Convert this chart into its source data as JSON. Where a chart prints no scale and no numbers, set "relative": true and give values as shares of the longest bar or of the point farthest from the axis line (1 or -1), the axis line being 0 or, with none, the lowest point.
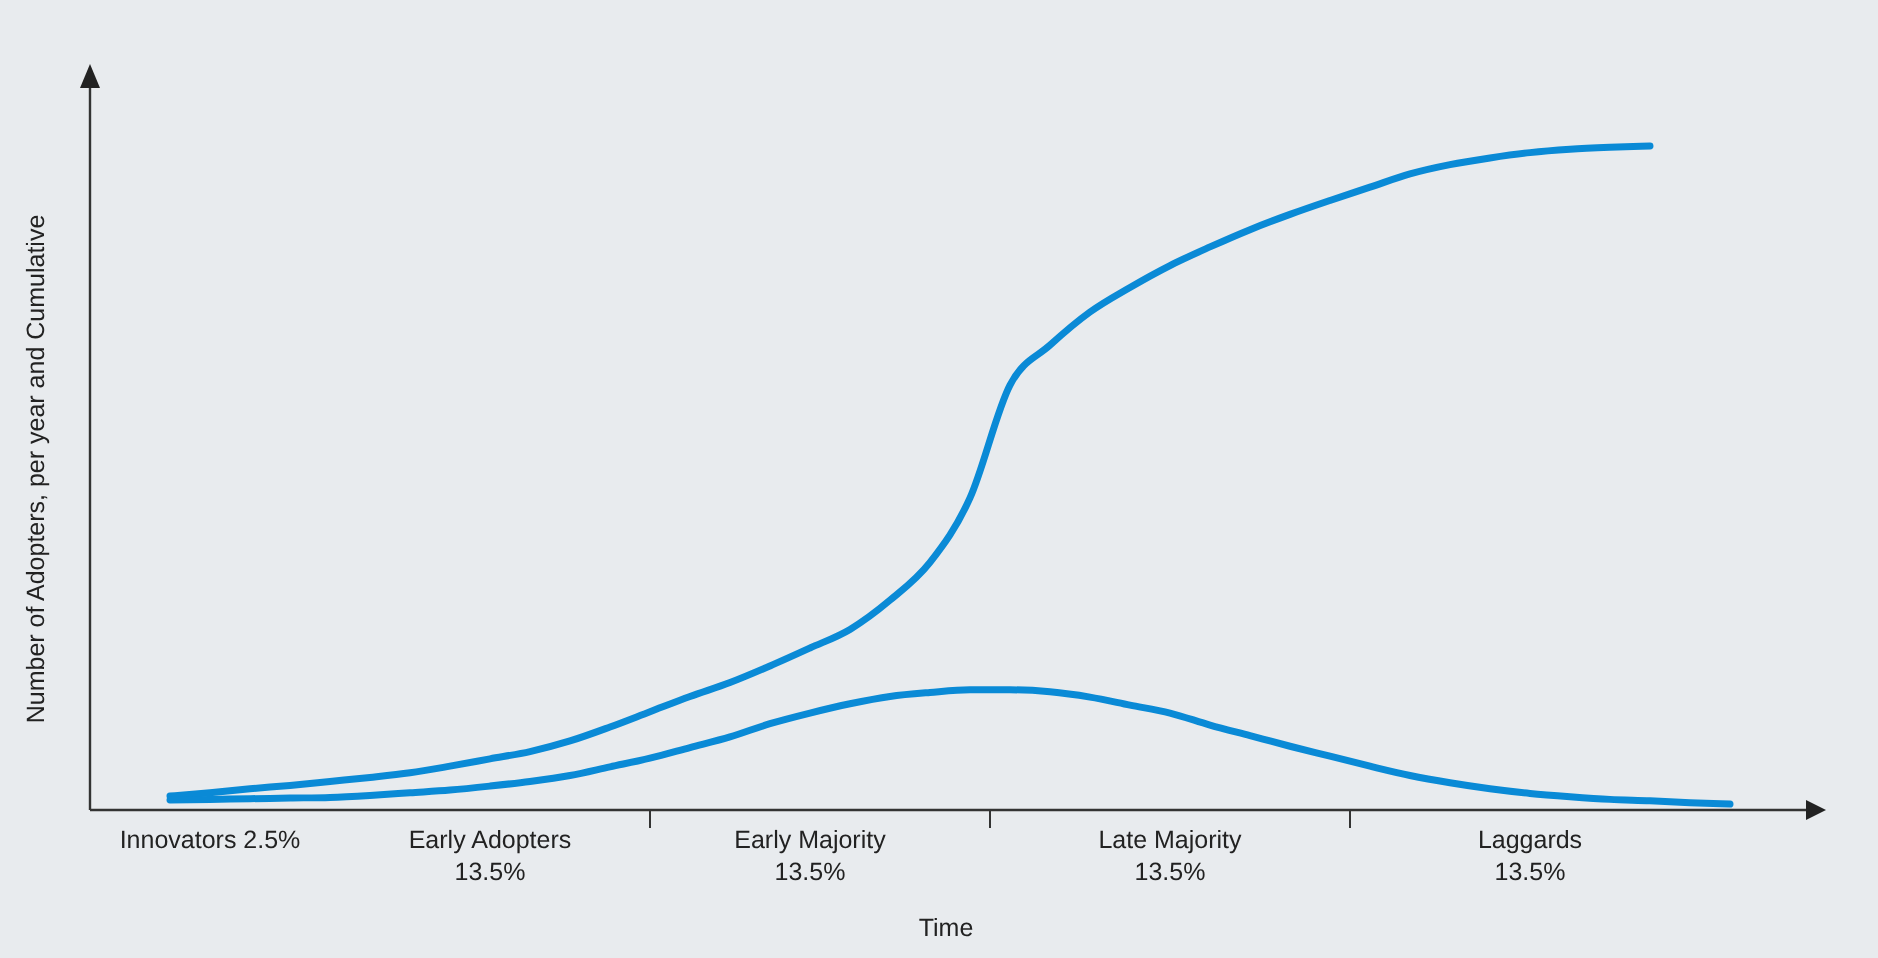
{
  "chart_data": {
    "type": "line",
    "relative": true,
    "xlabel": "Time",
    "ylabel": "Number of Adopters, per year and Cumulative",
    "categories": [
      null,
      null,
      null,
      "Innovators 2.5%",
      null,
      null,
      null,
      null,
      null,
      null,
      "Early Adopters\n13.5%",
      null,
      null,
      null,
      null,
      null,
      null,
      null,
      "Early Majority\n13.5%",
      null,
      null,
      null,
      null,
      null,
      null,
      null,
      null,
      "Late Majority\n13.5%",
      null,
      null,
      null,
      null,
      null,
      null,
      null,
      null,
      "Laggards\n13.5%",
      null,
      null,
      null,
      null,
      null,
      null,
      null
    ],
    "series": [
      {
        "color": "#0a8ad6",
        "values": [
          null,
          null,
          0.021,
          0.026,
          0.032,
          0.037,
          0.043,
          0.049,
          0.056,
          0.066,
          0.077,
          0.088,
          0.104,
          0.125,
          0.148,
          0.171,
          0.192,
          0.217,
          0.244,
          0.272,
          0.316,
          0.373,
          0.47,
          0.64,
          0.7,
          0.75,
          0.787,
          0.82,
          0.848,
          0.874,
          0.897,
          0.918,
          0.938,
          0.958,
          0.972,
          0.982,
          0.99,
          0.995,
          0.998,
          1,
          null,
          null,
          null,
          null
        ]
      },
      {
        "color": "#0a8ad6",
        "values": [
          null,
          null,
          0.015,
          0.016,
          0.017,
          0.018,
          0.019,
          0.022,
          0.026,
          0.03,
          0.036,
          0.043,
          0.052,
          0.065,
          0.078,
          0.094,
          0.11,
          0.13,
          0.146,
          0.16,
          0.171,
          0.177,
          0.181,
          0.181,
          0.178,
          0.17,
          0.158,
          0.146,
          0.128,
          0.112,
          0.096,
          0.081,
          0.066,
          0.052,
          0.041,
          0.032,
          0.025,
          0.02,
          0.016,
          0.014,
          0.011,
          0.009,
          null,
          null
        ]
      }
    ]
  }
}
